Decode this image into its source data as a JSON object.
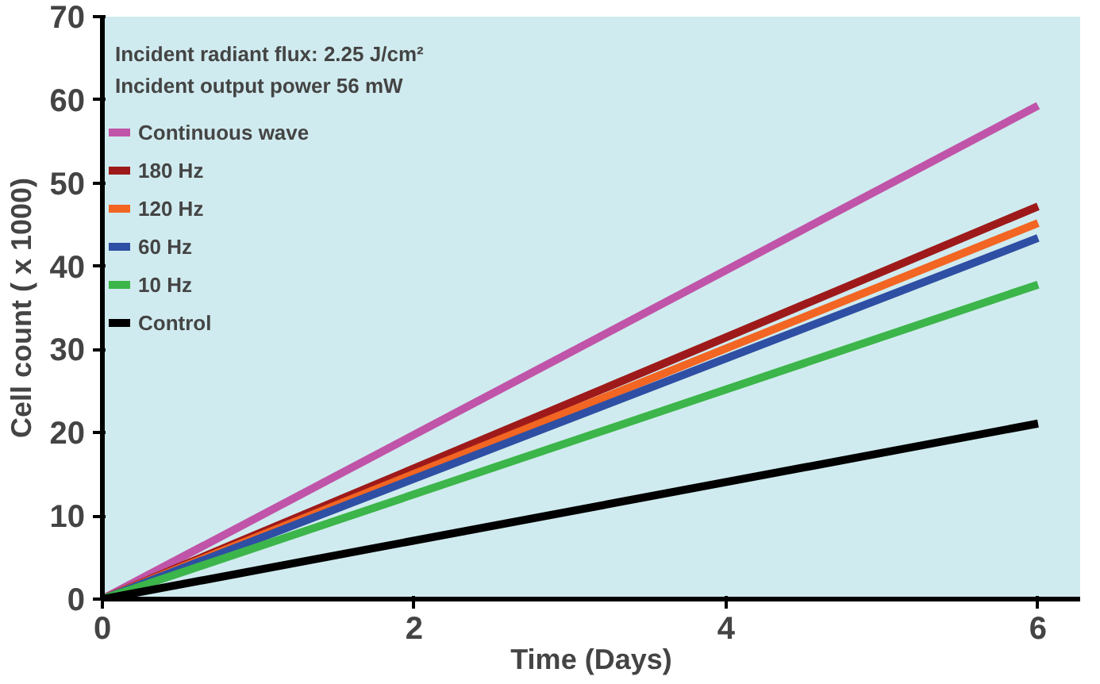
{
  "chart_data": {
    "type": "line",
    "xlabel": "Time (Days)",
    "ylabel": "Cell count ( x 1000)",
    "annotations": [
      "Incident radiant flux: 2.25 J/cm²",
      "Incident output power 56 mW"
    ],
    "x": [
      0,
      6
    ],
    "series": [
      {
        "name": "Continuous wave",
        "color": "#c054a8",
        "values": [
          0,
          59.3
        ]
      },
      {
        "name": "180 Hz",
        "color": "#9e1a1a",
        "values": [
          0,
          47.2
        ]
      },
      {
        "name": "120 Hz",
        "color": "#f26522",
        "values": [
          0,
          45.2
        ]
      },
      {
        "name": "60 Hz",
        "color": "#2e4fa3",
        "values": [
          0,
          43.4
        ]
      },
      {
        "name": "10 Hz",
        "color": "#3cb54a",
        "values": [
          0,
          37.8
        ]
      },
      {
        "name": "Control",
        "color": "#000000",
        "values": [
          0,
          21.1
        ]
      }
    ],
    "xlim": [
      0,
      6.27
    ],
    "ylim": [
      0,
      70
    ],
    "xticks": [
      0,
      2,
      4,
      6
    ],
    "yticks": [
      0,
      10,
      20,
      30,
      40,
      50,
      60,
      70
    ],
    "legend": "top left",
    "grid": false,
    "line_style": "solid"
  }
}
